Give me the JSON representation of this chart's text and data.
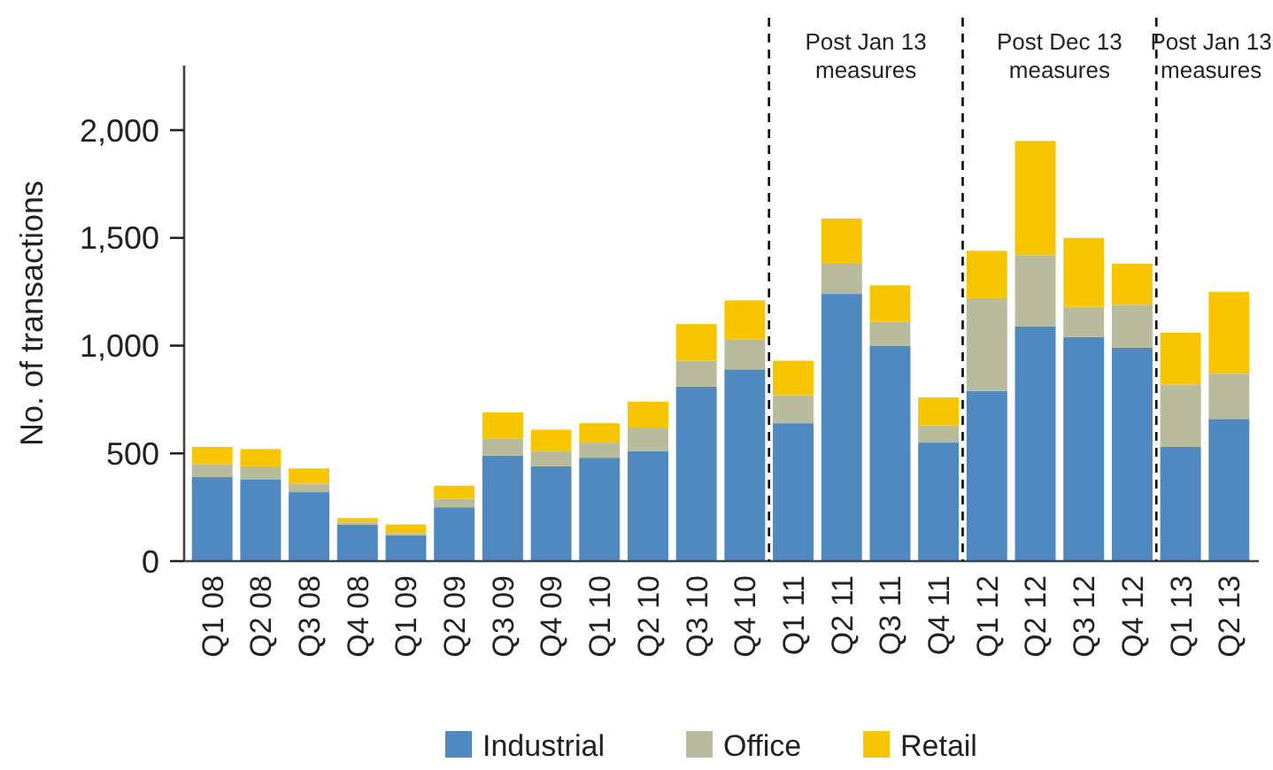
{
  "chart_data": {
    "type": "bar",
    "stacked": true,
    "ylabel": "No. of transactions",
    "categories": [
      "Q1 08",
      "Q2 08",
      "Q3 08",
      "Q4 08",
      "Q1 09",
      "Q2 09",
      "Q3 09",
      "Q4 09",
      "Q1 10",
      "Q2 10",
      "Q3 10",
      "Q4 10",
      "Q1 11",
      "Q2 11",
      "Q3 11",
      "Q4 11",
      "Q1 12",
      "Q2 12",
      "Q3 12",
      "Q4 12",
      "Q1 13",
      "Q2 13"
    ],
    "series": [
      {
        "name": "Industrial",
        "color": "#5088c0",
        "values": [
          390,
          380,
          320,
          170,
          120,
          250,
          490,
          440,
          480,
          510,
          810,
          890,
          640,
          1240,
          1000,
          550,
          790,
          1090,
          1040,
          990,
          530,
          660
        ]
      },
      {
        "name": "Office",
        "color": "#b8bb9c",
        "values": [
          60,
          60,
          40,
          10,
          10,
          40,
          80,
          70,
          70,
          110,
          120,
          140,
          130,
          140,
          110,
          80,
          430,
          330,
          140,
          200,
          290,
          210
        ]
      },
      {
        "name": "Retail",
        "color": "#f8c600",
        "values": [
          80,
          80,
          70,
          20,
          40,
          60,
          120,
          100,
          90,
          120,
          170,
          180,
          160,
          210,
          170,
          130,
          220,
          530,
          320,
          190,
          240,
          380
        ]
      }
    ],
    "ylim": [
      0,
      2300
    ],
    "yticks": [
      0,
      500,
      {
        "value": 1000,
        "label": "1,000"
      },
      {
        "value": 1500,
        "label": "1,500"
      },
      {
        "value": 2000,
        "label": "2,000"
      }
    ],
    "grid": false,
    "legend": "bottom",
    "annotations": [
      "Post Jan 13 measures",
      "Post Dec 13 measures",
      "Post Jan 13 measures"
    ]
  }
}
